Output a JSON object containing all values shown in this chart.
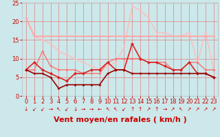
{
  "title": "",
  "xlabel": "Vent moyen/en rafales ( km/h )",
  "bg_color": "#cce8ea",
  "grid_color": "#e08080",
  "xlim": [
    -0.5,
    23.5
  ],
  "ylim": [
    0,
    25
  ],
  "xticks": [
    0,
    1,
    2,
    3,
    4,
    5,
    6,
    7,
    8,
    9,
    10,
    11,
    12,
    13,
    14,
    15,
    16,
    17,
    18,
    19,
    20,
    21,
    22,
    23
  ],
  "yticks": [
    0,
    5,
    10,
    15,
    20,
    25
  ],
  "line_rafales": {
    "x": [
      0,
      1,
      2,
      3,
      4,
      5,
      6,
      7,
      8,
      9,
      10,
      11,
      12,
      13,
      14,
      15,
      16,
      17,
      18,
      19,
      20,
      21,
      22,
      23
    ],
    "y": [
      21,
      16,
      16,
      16,
      16,
      16,
      16,
      16,
      16,
      16,
      16,
      16,
      16,
      16,
      16,
      16,
      16,
      16,
      16,
      16,
      16,
      16,
      16,
      16
    ],
    "color": "#ffaaaa",
    "linewidth": 1.5,
    "marker": "D",
    "markersize": 2.0,
    "zorder": 3
  },
  "line_diagonal": {
    "x": [
      0,
      1,
      2,
      3,
      4,
      5,
      6,
      7,
      8,
      9,
      10,
      11,
      12,
      13,
      14,
      15,
      16,
      17,
      18,
      19,
      20,
      21,
      22,
      23
    ],
    "y": [
      21,
      16,
      15,
      14,
      12,
      11,
      10,
      9,
      8,
      7,
      8,
      9,
      13,
      24,
      23,
      21,
      17,
      17,
      16,
      16,
      17,
      9,
      17,
      7
    ],
    "color": "#ffbbbb",
    "linewidth": 1.0,
    "marker": "D",
    "markersize": 2.0,
    "zorder": 2
  },
  "line_medium": {
    "x": [
      0,
      1,
      2,
      3,
      4,
      5,
      6,
      7,
      8,
      9,
      10,
      11,
      12,
      13,
      14,
      15,
      16,
      17,
      18,
      19,
      20,
      21,
      22,
      23
    ],
    "y": [
      7,
      7,
      12,
      8,
      7,
      7,
      7,
      6,
      6,
      6,
      9,
      10,
      10,
      10,
      10,
      9,
      9,
      9,
      7,
      7,
      9,
      9,
      7,
      7
    ],
    "color": "#ff7070",
    "linewidth": 1.0,
    "marker": "D",
    "markersize": 2.0,
    "zorder": 4
  },
  "line_moyen": {
    "x": [
      0,
      1,
      2,
      3,
      4,
      5,
      6,
      7,
      8,
      9,
      10,
      11,
      12,
      13,
      14,
      15,
      16,
      17,
      18,
      19,
      20,
      21,
      22,
      23
    ],
    "y": [
      7,
      9,
      7,
      6,
      5,
      4,
      6,
      6,
      7,
      7,
      9,
      7,
      7,
      14,
      10,
      9,
      9,
      8,
      7,
      7,
      9,
      6,
      6,
      5
    ],
    "color": "#dd2222",
    "linewidth": 1.2,
    "marker": "D",
    "markersize": 2.5,
    "zorder": 5
  },
  "line_min": {
    "x": [
      0,
      1,
      2,
      3,
      4,
      5,
      6,
      7,
      8,
      9,
      10,
      11,
      12,
      13,
      14,
      15,
      16,
      17,
      18,
      19,
      20,
      21,
      22,
      23
    ],
    "y": [
      7,
      6,
      6,
      5,
      2,
      3,
      3,
      3,
      3,
      3,
      6,
      7,
      7,
      6,
      6,
      6,
      6,
      6,
      6,
      6,
      6,
      6,
      6,
      5
    ],
    "color": "#990000",
    "linewidth": 1.2,
    "marker": "D",
    "markersize": 2.0,
    "zorder": 6
  },
  "arrow_chars": [
    "↓",
    "↙",
    "↙",
    "→",
    "↖",
    "↙",
    "↓",
    "→",
    "→",
    "←",
    "↖",
    "↖",
    "↙",
    "↑",
    "↑",
    "↗",
    "↑",
    "→",
    "↗",
    "↖",
    "↗",
    "↗",
    "↗",
    "↗"
  ],
  "xlabel_fontsize": 8,
  "tick_fontsize": 6,
  "arrow_fontsize": 5.5
}
